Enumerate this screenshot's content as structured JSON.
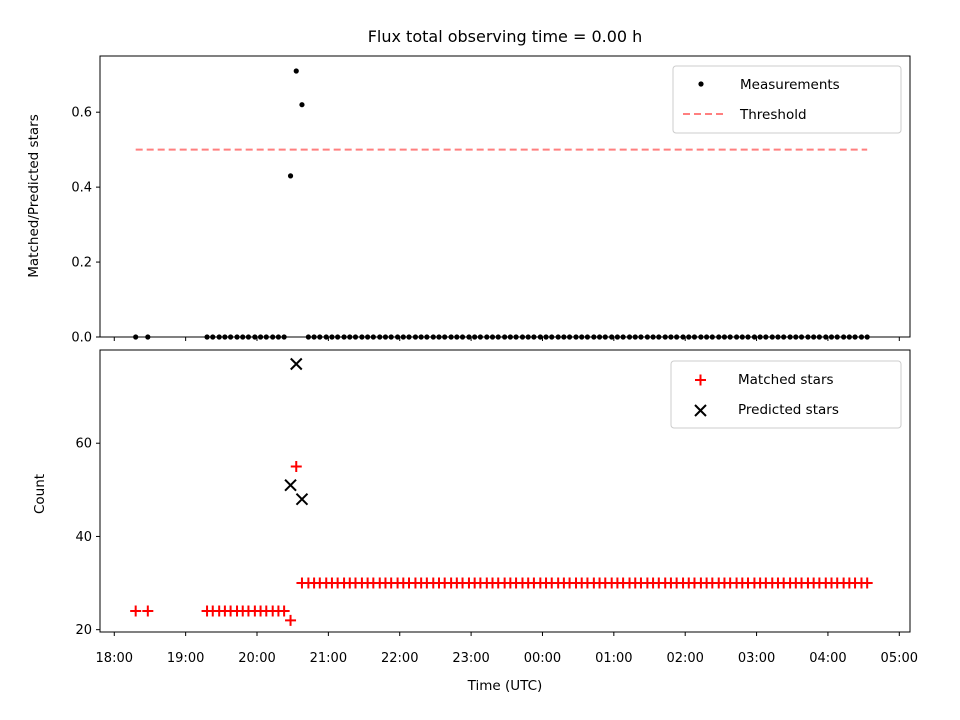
{
  "chart_data": [
    {
      "type": "scatter",
      "title": "Flux total observing time = 0.00 h",
      "xlabel": "",
      "ylabel": "Matched/Predicted stars",
      "x_unit": "hours since 18:00 UTC",
      "xlim": [
        -0.2,
        11.15
      ],
      "ylim": [
        0,
        0.75
      ],
      "yticks": [
        0.0,
        0.2,
        0.4,
        0.6
      ],
      "ytick_labels": [
        "0.0",
        "0.2",
        "0.4",
        "0.6"
      ],
      "legend_position": "top-right",
      "series": [
        {
          "name": "Measurements",
          "marker": "dot",
          "color": "#000000",
          "points": [
            {
              "x": 0.3,
              "y": 0.0
            },
            {
              "x": 0.47,
              "y": 0.0
            },
            {
              "x": 1.3,
              "y": 0.0
            },
            {
              "x": 1.38,
              "y": 0.0
            },
            {
              "x": 1.47,
              "y": 0.0
            },
            {
              "x": 1.55,
              "y": 0.0
            },
            {
              "x": 1.63,
              "y": 0.0
            },
            {
              "x": 1.72,
              "y": 0.0
            },
            {
              "x": 1.8,
              "y": 0.0
            },
            {
              "x": 1.88,
              "y": 0.0
            },
            {
              "x": 1.97,
              "y": 0.0
            },
            {
              "x": 2.05,
              "y": 0.0
            },
            {
              "x": 2.13,
              "y": 0.0
            },
            {
              "x": 2.22,
              "y": 0.0
            },
            {
              "x": 2.3,
              "y": 0.0
            },
            {
              "x": 2.38,
              "y": 0.0
            },
            {
              "x": 2.47,
              "y": 0.43
            },
            {
              "x": 2.55,
              "y": 0.71
            },
            {
              "x": 2.63,
              "y": 0.62
            },
            {
              "x": 2.72,
              "y": 0.0
            },
            {
              "x": 2.8,
              "y": 0.0
            },
            {
              "x": 2.88,
              "y": 0.0
            },
            {
              "x": 2.97,
              "y": 0.0
            },
            {
              "x": 3.05,
              "y": 0.0
            },
            {
              "x": 3.13,
              "y": 0.0
            },
            {
              "x": 3.22,
              "y": 0.0
            },
            {
              "x": 3.3,
              "y": 0.0
            },
            {
              "x": 3.38,
              "y": 0.0
            },
            {
              "x": 3.47,
              "y": 0.0
            },
            {
              "x": 3.55,
              "y": 0.0
            },
            {
              "x": 3.63,
              "y": 0.0
            },
            {
              "x": 3.72,
              "y": 0.0
            },
            {
              "x": 3.8,
              "y": 0.0
            },
            {
              "x": 3.88,
              "y": 0.0
            },
            {
              "x": 3.97,
              "y": 0.0
            },
            {
              "x": 4.05,
              "y": 0.0
            },
            {
              "x": 4.13,
              "y": 0.0
            },
            {
              "x": 4.22,
              "y": 0.0
            },
            {
              "x": 4.3,
              "y": 0.0
            },
            {
              "x": 4.38,
              "y": 0.0
            },
            {
              "x": 4.47,
              "y": 0.0
            },
            {
              "x": 4.55,
              "y": 0.0
            },
            {
              "x": 4.63,
              "y": 0.0
            },
            {
              "x": 4.72,
              "y": 0.0
            },
            {
              "x": 4.8,
              "y": 0.0
            },
            {
              "x": 4.88,
              "y": 0.0
            },
            {
              "x": 4.97,
              "y": 0.0
            },
            {
              "x": 5.05,
              "y": 0.0
            },
            {
              "x": 5.13,
              "y": 0.0
            },
            {
              "x": 5.22,
              "y": 0.0
            },
            {
              "x": 5.3,
              "y": 0.0
            },
            {
              "x": 5.38,
              "y": 0.0
            },
            {
              "x": 5.47,
              "y": 0.0
            },
            {
              "x": 5.55,
              "y": 0.0
            },
            {
              "x": 5.63,
              "y": 0.0
            },
            {
              "x": 5.72,
              "y": 0.0
            },
            {
              "x": 5.8,
              "y": 0.0
            },
            {
              "x": 5.88,
              "y": 0.0
            },
            {
              "x": 5.97,
              "y": 0.0
            },
            {
              "x": 6.05,
              "y": 0.0
            },
            {
              "x": 6.13,
              "y": 0.0
            },
            {
              "x": 6.22,
              "y": 0.0
            },
            {
              "x": 6.3,
              "y": 0.0
            },
            {
              "x": 6.38,
              "y": 0.0
            },
            {
              "x": 6.47,
              "y": 0.0
            },
            {
              "x": 6.55,
              "y": 0.0
            },
            {
              "x": 6.63,
              "y": 0.0
            },
            {
              "x": 6.72,
              "y": 0.0
            },
            {
              "x": 6.8,
              "y": 0.0
            },
            {
              "x": 6.88,
              "y": 0.0
            },
            {
              "x": 6.97,
              "y": 0.0
            },
            {
              "x": 7.05,
              "y": 0.0
            },
            {
              "x": 7.13,
              "y": 0.0
            },
            {
              "x": 7.22,
              "y": 0.0
            },
            {
              "x": 7.3,
              "y": 0.0
            },
            {
              "x": 7.38,
              "y": 0.0
            },
            {
              "x": 7.47,
              "y": 0.0
            },
            {
              "x": 7.55,
              "y": 0.0
            },
            {
              "x": 7.63,
              "y": 0.0
            },
            {
              "x": 7.72,
              "y": 0.0
            },
            {
              "x": 7.8,
              "y": 0.0
            },
            {
              "x": 7.88,
              "y": 0.0
            },
            {
              "x": 7.97,
              "y": 0.0
            },
            {
              "x": 8.05,
              "y": 0.0
            },
            {
              "x": 8.13,
              "y": 0.0
            },
            {
              "x": 8.22,
              "y": 0.0
            },
            {
              "x": 8.3,
              "y": 0.0
            },
            {
              "x": 8.38,
              "y": 0.0
            },
            {
              "x": 8.47,
              "y": 0.0
            },
            {
              "x": 8.55,
              "y": 0.0
            },
            {
              "x": 8.63,
              "y": 0.0
            },
            {
              "x": 8.72,
              "y": 0.0
            },
            {
              "x": 8.8,
              "y": 0.0
            },
            {
              "x": 8.88,
              "y": 0.0
            },
            {
              "x": 8.97,
              "y": 0.0
            },
            {
              "x": 9.05,
              "y": 0.0
            },
            {
              "x": 9.13,
              "y": 0.0
            },
            {
              "x": 9.22,
              "y": 0.0
            },
            {
              "x": 9.3,
              "y": 0.0
            },
            {
              "x": 9.38,
              "y": 0.0
            },
            {
              "x": 9.47,
              "y": 0.0
            },
            {
              "x": 9.55,
              "y": 0.0
            },
            {
              "x": 9.63,
              "y": 0.0
            },
            {
              "x": 9.72,
              "y": 0.0
            },
            {
              "x": 9.8,
              "y": 0.0
            },
            {
              "x": 9.88,
              "y": 0.0
            },
            {
              "x": 9.97,
              "y": 0.0
            },
            {
              "x": 10.05,
              "y": 0.0
            },
            {
              "x": 10.13,
              "y": 0.0
            },
            {
              "x": 10.22,
              "y": 0.0
            },
            {
              "x": 10.3,
              "y": 0.0
            },
            {
              "x": 10.38,
              "y": 0.0
            },
            {
              "x": 10.47,
              "y": 0.0
            },
            {
              "x": 10.55,
              "y": 0.0
            }
          ]
        },
        {
          "name": "Threshold",
          "line_style": "dashed",
          "color": "#ff7f7f",
          "x": [
            0.3,
            10.55
          ],
          "y": [
            0.5,
            0.5
          ]
        }
      ]
    },
    {
      "type": "scatter",
      "title": "",
      "xlabel": "Time (UTC)",
      "ylabel": "Count",
      "x_unit": "hours since 18:00 UTC",
      "xlim": [
        -0.2,
        11.15
      ],
      "ylim": [
        19.5,
        80
      ],
      "yticks": [
        20,
        40,
        60
      ],
      "ytick_labels": [
        "20",
        "40",
        "60"
      ],
      "xticks": [
        0,
        1,
        2,
        3,
        4,
        5,
        6,
        7,
        8,
        9,
        10,
        11
      ],
      "xtick_labels": [
        "18:00",
        "19:00",
        "20:00",
        "21:00",
        "22:00",
        "23:00",
        "00:00",
        "01:00",
        "02:00",
        "03:00",
        "04:00",
        "05:00"
      ],
      "legend_position": "top-right",
      "series": [
        {
          "name": "Matched stars",
          "marker": "plus",
          "color": "#ff0000",
          "points": [
            {
              "x": 0.3,
              "y": 24
            },
            {
              "x": 0.47,
              "y": 24
            },
            {
              "x": 1.3,
              "y": 24
            },
            {
              "x": 1.38,
              "y": 24
            },
            {
              "x": 1.47,
              "y": 24
            },
            {
              "x": 1.55,
              "y": 24
            },
            {
              "x": 1.63,
              "y": 24
            },
            {
              "x": 1.72,
              "y": 24
            },
            {
              "x": 1.8,
              "y": 24
            },
            {
              "x": 1.88,
              "y": 24
            },
            {
              "x": 1.97,
              "y": 24
            },
            {
              "x": 2.05,
              "y": 24
            },
            {
              "x": 2.13,
              "y": 24
            },
            {
              "x": 2.22,
              "y": 24
            },
            {
              "x": 2.3,
              "y": 24
            },
            {
              "x": 2.38,
              "y": 24
            },
            {
              "x": 2.47,
              "y": 22
            },
            {
              "x": 2.55,
              "y": 55
            },
            {
              "x": 2.63,
              "y": 30
            },
            {
              "x": 2.72,
              "y": 30
            },
            {
              "x": 2.8,
              "y": 30
            },
            {
              "x": 2.88,
              "y": 30
            },
            {
              "x": 2.97,
              "y": 30
            },
            {
              "x": 3.05,
              "y": 30
            },
            {
              "x": 3.13,
              "y": 30
            },
            {
              "x": 3.22,
              "y": 30
            },
            {
              "x": 3.3,
              "y": 30
            },
            {
              "x": 3.38,
              "y": 30
            },
            {
              "x": 3.47,
              "y": 30
            },
            {
              "x": 3.55,
              "y": 30
            },
            {
              "x": 3.63,
              "y": 30
            },
            {
              "x": 3.72,
              "y": 30
            },
            {
              "x": 3.8,
              "y": 30
            },
            {
              "x": 3.88,
              "y": 30
            },
            {
              "x": 3.97,
              "y": 30
            },
            {
              "x": 4.05,
              "y": 30
            },
            {
              "x": 4.13,
              "y": 30
            },
            {
              "x": 4.22,
              "y": 30
            },
            {
              "x": 4.3,
              "y": 30
            },
            {
              "x": 4.38,
              "y": 30
            },
            {
              "x": 4.47,
              "y": 30
            },
            {
              "x": 4.55,
              "y": 30
            },
            {
              "x": 4.63,
              "y": 30
            },
            {
              "x": 4.72,
              "y": 30
            },
            {
              "x": 4.8,
              "y": 30
            },
            {
              "x": 4.88,
              "y": 30
            },
            {
              "x": 4.97,
              "y": 30
            },
            {
              "x": 5.05,
              "y": 30
            },
            {
              "x": 5.13,
              "y": 30
            },
            {
              "x": 5.22,
              "y": 30
            },
            {
              "x": 5.3,
              "y": 30
            },
            {
              "x": 5.38,
              "y": 30
            },
            {
              "x": 5.47,
              "y": 30
            },
            {
              "x": 5.55,
              "y": 30
            },
            {
              "x": 5.63,
              "y": 30
            },
            {
              "x": 5.72,
              "y": 30
            },
            {
              "x": 5.8,
              "y": 30
            },
            {
              "x": 5.88,
              "y": 30
            },
            {
              "x": 5.97,
              "y": 30
            },
            {
              "x": 6.05,
              "y": 30
            },
            {
              "x": 6.13,
              "y": 30
            },
            {
              "x": 6.22,
              "y": 30
            },
            {
              "x": 6.3,
              "y": 30
            },
            {
              "x": 6.38,
              "y": 30
            },
            {
              "x": 6.47,
              "y": 30
            },
            {
              "x": 6.55,
              "y": 30
            },
            {
              "x": 6.63,
              "y": 30
            },
            {
              "x": 6.72,
              "y": 30
            },
            {
              "x": 6.8,
              "y": 30
            },
            {
              "x": 6.88,
              "y": 30
            },
            {
              "x": 6.97,
              "y": 30
            },
            {
              "x": 7.05,
              "y": 30
            },
            {
              "x": 7.13,
              "y": 30
            },
            {
              "x": 7.22,
              "y": 30
            },
            {
              "x": 7.3,
              "y": 30
            },
            {
              "x": 7.38,
              "y": 30
            },
            {
              "x": 7.47,
              "y": 30
            },
            {
              "x": 7.55,
              "y": 30
            },
            {
              "x": 7.63,
              "y": 30
            },
            {
              "x": 7.72,
              "y": 30
            },
            {
              "x": 7.8,
              "y": 30
            },
            {
              "x": 7.88,
              "y": 30
            },
            {
              "x": 7.97,
              "y": 30
            },
            {
              "x": 8.05,
              "y": 30
            },
            {
              "x": 8.13,
              "y": 30
            },
            {
              "x": 8.22,
              "y": 30
            },
            {
              "x": 8.3,
              "y": 30
            },
            {
              "x": 8.38,
              "y": 30
            },
            {
              "x": 8.47,
              "y": 30
            },
            {
              "x": 8.55,
              "y": 30
            },
            {
              "x": 8.63,
              "y": 30
            },
            {
              "x": 8.72,
              "y": 30
            },
            {
              "x": 8.8,
              "y": 30
            },
            {
              "x": 8.88,
              "y": 30
            },
            {
              "x": 8.97,
              "y": 30
            },
            {
              "x": 9.05,
              "y": 30
            },
            {
              "x": 9.13,
              "y": 30
            },
            {
              "x": 9.22,
              "y": 30
            },
            {
              "x": 9.3,
              "y": 30
            },
            {
              "x": 9.38,
              "y": 30
            },
            {
              "x": 9.47,
              "y": 30
            },
            {
              "x": 9.55,
              "y": 30
            },
            {
              "x": 9.63,
              "y": 30
            },
            {
              "x": 9.72,
              "y": 30
            },
            {
              "x": 9.8,
              "y": 30
            },
            {
              "x": 9.88,
              "y": 30
            },
            {
              "x": 9.97,
              "y": 30
            },
            {
              "x": 10.05,
              "y": 30
            },
            {
              "x": 10.13,
              "y": 30
            },
            {
              "x": 10.22,
              "y": 30
            },
            {
              "x": 10.3,
              "y": 30
            },
            {
              "x": 10.38,
              "y": 30
            },
            {
              "x": 10.47,
              "y": 30
            },
            {
              "x": 10.55,
              "y": 30
            }
          ]
        },
        {
          "name": "Predicted stars",
          "marker": "x",
          "color": "#000000",
          "points": [
            {
              "x": 2.47,
              "y": 51
            },
            {
              "x": 2.55,
              "y": 77
            },
            {
              "x": 2.63,
              "y": 48
            }
          ]
        }
      ]
    }
  ]
}
